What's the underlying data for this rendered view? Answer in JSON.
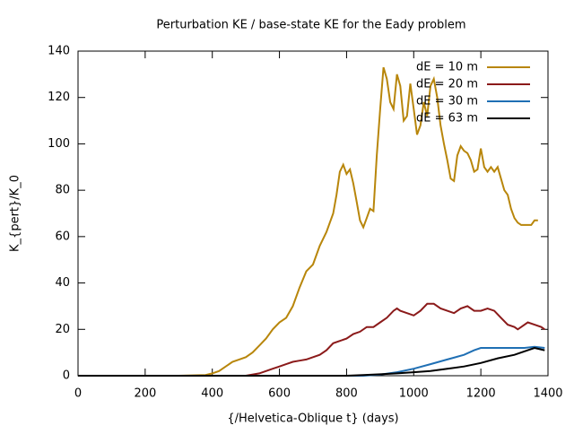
{
  "chart_data": {
    "type": "line",
    "title": "Perturbation KE / base-state KE for the Eady problem",
    "x_label": "{/Helvetica-Oblique t} (days)",
    "y_label": "K_{pert}/K_0",
    "xlim": [
      0,
      1400
    ],
    "xticks": [
      0,
      200,
      400,
      600,
      800,
      1000,
      1200,
      1400
    ],
    "ylim": [
      0,
      140
    ],
    "yticks": [
      0,
      20,
      40,
      60,
      80,
      100,
      120,
      140
    ],
    "legend": "top-right",
    "series": [
      {
        "name": "dE = 10 m",
        "color": "#b8860b",
        "x": [
          0,
          100,
          200,
          300,
          380,
          400,
          420,
          440,
          460,
          480,
          500,
          520,
          540,
          560,
          580,
          600,
          620,
          640,
          660,
          680,
          700,
          720,
          740,
          760,
          770,
          780,
          790,
          800,
          810,
          820,
          830,
          840,
          850,
          860,
          870,
          880,
          890,
          900,
          910,
          920,
          930,
          940,
          950,
          960,
          970,
          980,
          990,
          1000,
          1010,
          1020,
          1030,
          1040,
          1050,
          1060,
          1070,
          1080,
          1090,
          1100,
          1110,
          1120,
          1130,
          1140,
          1150,
          1160,
          1170,
          1180,
          1190,
          1200,
          1210,
          1220,
          1230,
          1240,
          1250,
          1260,
          1270,
          1280,
          1290,
          1300,
          1310,
          1320,
          1340,
          1350,
          1360,
          1370
        ],
        "values": [
          0,
          0,
          0,
          0,
          0.3,
          1,
          2,
          4,
          6,
          7,
          8,
          10,
          13,
          16,
          20,
          23,
          25,
          30,
          38,
          45,
          48,
          56,
          62,
          70,
          78,
          88,
          91,
          87,
          89,
          83,
          75,
          67,
          64,
          68,
          72,
          71,
          95,
          115,
          133,
          128,
          118,
          115,
          130,
          125,
          110,
          112,
          126,
          115,
          104,
          108,
          118,
          112,
          125,
          128,
          120,
          108,
          100,
          93,
          85,
          84,
          95,
          99,
          97,
          96,
          93,
          88,
          89,
          98,
          90,
          88,
          90,
          88,
          90,
          85,
          80,
          78,
          72,
          68,
          66,
          65,
          65,
          65,
          67,
          67
        ]
      },
      {
        "name": "dE = 20 m",
        "color": "#8b1a1a",
        "x": [
          0,
          100,
          200,
          300,
          400,
          500,
          540,
          560,
          580,
          600,
          620,
          640,
          660,
          680,
          700,
          720,
          740,
          760,
          780,
          800,
          820,
          840,
          860,
          880,
          900,
          920,
          940,
          950,
          960,
          980,
          1000,
          1020,
          1040,
          1060,
          1080,
          1100,
          1120,
          1140,
          1160,
          1180,
          1200,
          1220,
          1240,
          1260,
          1280,
          1300,
          1310,
          1320,
          1340,
          1360,
          1380,
          1390
        ],
        "values": [
          0,
          0,
          0,
          0,
          0,
          0,
          1,
          2,
          3,
          4,
          5,
          6,
          6.5,
          7,
          8,
          9,
          11,
          14,
          15,
          16,
          18,
          19,
          21,
          21,
          23,
          25,
          28,
          29,
          28,
          27,
          26,
          28,
          31,
          31,
          29,
          28,
          27,
          29,
          30,
          28,
          28,
          29,
          28,
          25,
          22,
          21,
          20,
          21,
          23,
          22,
          21,
          20
        ]
      },
      {
        "name": "dE = 30 m",
        "color": "#1f6fb4",
        "x": [
          0,
          200,
          400,
          600,
          800,
          850,
          900,
          950,
          1000,
          1050,
          1100,
          1150,
          1180,
          1200,
          1220,
          1250,
          1280,
          1300,
          1330,
          1360,
          1390
        ],
        "values": [
          0,
          0,
          0,
          0,
          0,
          0,
          0.5,
          1.5,
          3,
          5,
          7,
          9,
          11,
          12,
          12,
          12,
          12,
          12,
          12,
          12.5,
          12
        ]
      },
      {
        "name": "dE = 63 m",
        "color": "#000000",
        "x": [
          0,
          200,
          400,
          600,
          800,
          850,
          900,
          950,
          1000,
          1050,
          1100,
          1150,
          1200,
          1250,
          1300,
          1340,
          1360,
          1390
        ],
        "values": [
          0,
          0,
          0,
          0,
          0,
          0.3,
          0.6,
          1,
          1.5,
          2,
          3,
          4,
          5.5,
          7.5,
          9,
          11,
          12,
          11
        ]
      }
    ]
  }
}
